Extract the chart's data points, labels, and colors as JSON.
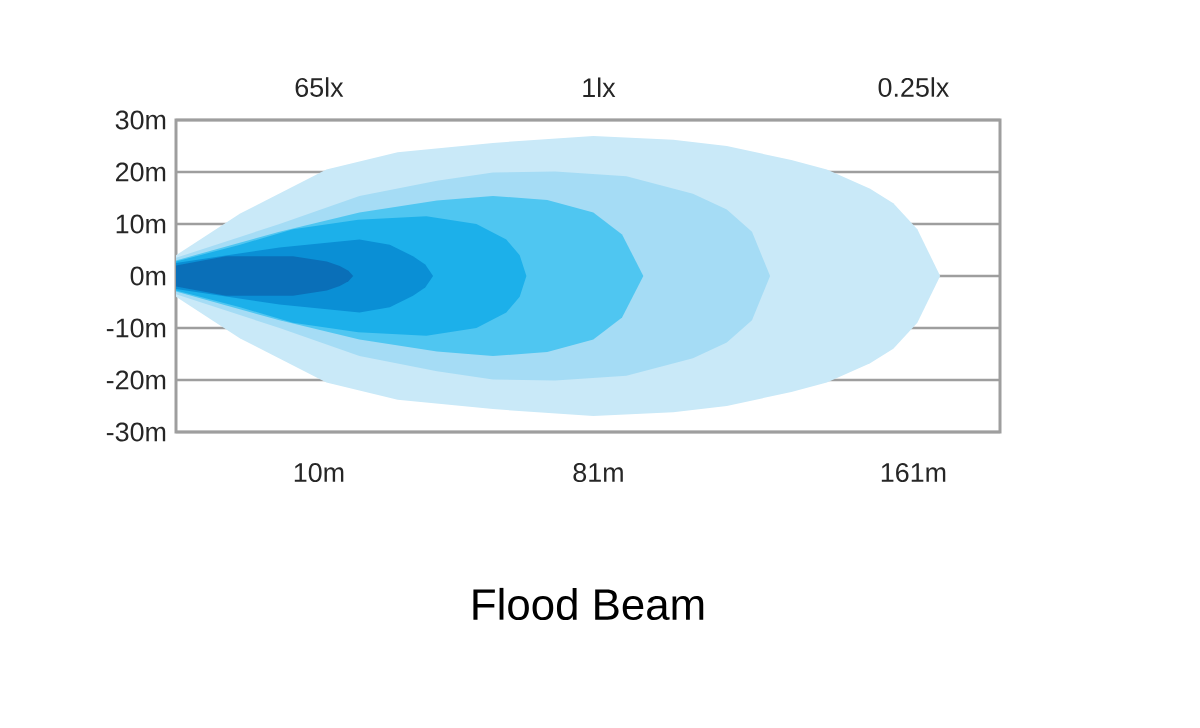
{
  "chart_data": {
    "type": "area",
    "title": "Flood Beam",
    "annotations": [
      "65lx",
      "1lx",
      "0.25lx"
    ],
    "xlim": [
      -26.3,
      183
    ],
    "xticks": [
      {
        "value": 10,
        "label": "10m"
      },
      {
        "value": 81,
        "label": "81m"
      },
      {
        "value": 161,
        "label": "161m"
      }
    ],
    "ylim": [
      -30,
      30
    ],
    "yticks": [
      {
        "value": 30,
        "label": "30m"
      },
      {
        "value": 20,
        "label": "20m"
      },
      {
        "value": 10,
        "label": "10m"
      },
      {
        "value": 0,
        "label": "0m"
      },
      {
        "value": -10,
        "label": "-10m"
      },
      {
        "value": -20,
        "label": "-20m"
      },
      {
        "value": -30,
        "label": "-30m"
      }
    ],
    "grid": "y",
    "series": [
      {
        "color": "#c9e9f8",
        "x": [
          -26.3,
          -10,
          11.9,
          30,
          54.2,
          79.7,
          100,
          113.6,
          130,
          139,
          150,
          155.9,
          162,
          167.8
        ],
        "values": [
          4,
          12,
          20.5,
          23.8,
          25.6,
          26.9,
          26.2,
          25,
          22.3,
          20.5,
          16.8,
          14,
          9,
          0
        ]
      },
      {
        "color": "#c9e9f8",
        "x": [
          -26.3,
          -10,
          11.9,
          30,
          54.2,
          79.7,
          100,
          113.6,
          130,
          139,
          150,
          155.9,
          162,
          167.8
        ],
        "values": [
          -4,
          -12,
          -20.5,
          -23.8,
          -25.6,
          -26.9,
          -26.2,
          -25,
          -22.3,
          -20.5,
          -16.8,
          -14,
          -9,
          0
        ]
      },
      {
        "color": "#a5dcf5",
        "x": [
          -26.3,
          0,
          20.3,
          40,
          54.2,
          70,
          88.1,
          105,
          113.6,
          120,
          124.6
        ],
        "values": [
          3.5,
          10,
          15.4,
          18.3,
          19.9,
          20.1,
          19.2,
          15.8,
          12.8,
          8.5,
          0
        ]
      },
      {
        "color": "#a5dcf5",
        "x": [
          -26.3,
          0,
          20.3,
          40,
          54.2,
          70,
          88.1,
          105,
          113.6,
          120,
          124.6
        ],
        "values": [
          -3.5,
          -10,
          -15.4,
          -18.3,
          -19.9,
          -20.1,
          -19.2,
          -15.8,
          -12.8,
          -8.5,
          0
        ]
      },
      {
        "color": "#4fc6f1",
        "x": [
          -26.3,
          0,
          20.3,
          40,
          54.2,
          68,
          79.7,
          87,
          92.4
        ],
        "values": [
          3,
          8.5,
          12.2,
          14.5,
          15.4,
          14.6,
          12.2,
          8,
          0
        ]
      },
      {
        "color": "#4fc6f1",
        "x": [
          -26.3,
          0,
          20.3,
          40,
          54.2,
          68,
          79.7,
          87,
          92.4
        ],
        "values": [
          -3,
          -8.5,
          -12.2,
          -14.5,
          -15.4,
          -14.6,
          -12.2,
          -8,
          0
        ]
      },
      {
        "color": "#1cb0ea",
        "x": [
          -26.3,
          -10,
          3.4,
          20,
          37.3,
          50,
          57.6,
          61,
          62.7
        ],
        "values": [
          2.8,
          6,
          9,
          10.8,
          11.5,
          10,
          7,
          4,
          0
        ]
      },
      {
        "color": "#1cb0ea",
        "x": [
          -26.3,
          -10,
          3.4,
          20,
          37.3,
          50,
          57.6,
          61,
          62.7
        ],
        "values": [
          -2.8,
          -6,
          -9,
          -10.8,
          -11.5,
          -10,
          -7,
          -4,
          0
        ]
      },
      {
        "color": "#0a8fd5",
        "x": [
          -26.3,
          0,
          20.3,
          28,
          33.9,
          37,
          39
        ],
        "values": [
          2.5,
          5.5,
          7,
          6,
          3.8,
          2.2,
          0
        ]
      },
      {
        "color": "#0a8fd5",
        "x": [
          -26.3,
          0,
          20.3,
          28,
          33.9,
          37,
          39
        ],
        "values": [
          -2.5,
          -5.5,
          -7,
          -6,
          -3.8,
          -2.2,
          0
        ]
      },
      {
        "color": "#0a6fb8",
        "x": [
          -26.3,
          -13.6,
          3.4,
          12,
          15.3,
          17.5,
          18.7
        ],
        "values": [
          2,
          3.8,
          3.8,
          2.8,
          1.9,
          1,
          0
        ]
      },
      {
        "color": "#0a6fb8",
        "x": [
          -26.3,
          -13.6,
          3.4,
          12,
          15.3,
          17.5,
          18.7
        ],
        "values": [
          -2,
          -3.8,
          -3.8,
          -2.8,
          -1.9,
          -1,
          0
        ]
      }
    ]
  }
}
